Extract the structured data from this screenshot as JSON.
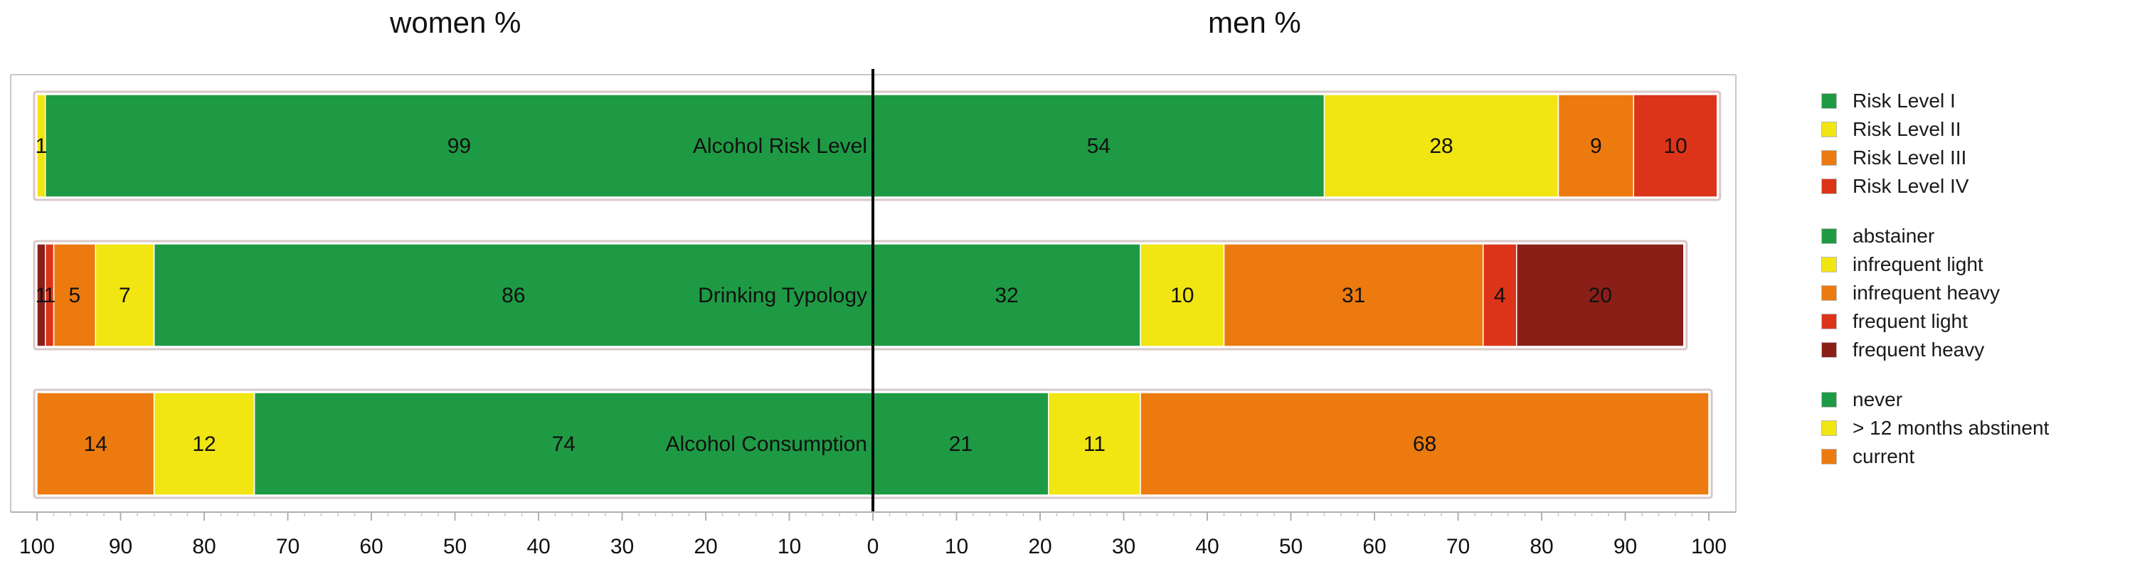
{
  "chart_data": {
    "type": "bar",
    "titles": {
      "left": "women %",
      "right": "men %"
    },
    "axis": {
      "ticks_left": [
        "100",
        "90",
        "80",
        "70",
        "60",
        "50",
        "40",
        "30",
        "20",
        "10"
      ],
      "ticks_right": [
        "0",
        "10",
        "20",
        "30",
        "40",
        "50",
        "60",
        "70",
        "80",
        "90",
        "100"
      ],
      "range": [
        0,
        100
      ]
    },
    "rows": [
      {
        "label": "Alcohol Risk Level",
        "women": [
          {
            "category": "Risk Level I",
            "value": 99,
            "color": "#1f9a44",
            "label": "99"
          },
          {
            "category": "Risk Level II",
            "value": 1,
            "color": "#f1e512",
            "label": "1"
          }
        ],
        "men": [
          {
            "category": "Risk Level I",
            "value": 54,
            "color": "#1f9a44",
            "label": "54"
          },
          {
            "category": "Risk Level II",
            "value": 28,
            "color": "#f1e512",
            "label": "28"
          },
          {
            "category": "Risk Level III",
            "value": 9,
            "color": "#ec7a0f",
            "label": "9"
          },
          {
            "category": "Risk Level IV",
            "value": 10,
            "color": "#dc3418",
            "label": "10"
          }
        ]
      },
      {
        "label": "Drinking Typology",
        "women": [
          {
            "category": "abstainer",
            "value": 86,
            "color": "#1f9a44",
            "label": "86"
          },
          {
            "category": "infrequent light",
            "value": 7,
            "color": "#f1e512",
            "label": "7"
          },
          {
            "category": "infrequent heavy",
            "value": 5,
            "color": "#ec7a0f",
            "label": "5"
          },
          {
            "category": "frequent light",
            "value": 1,
            "color": "#dc3418",
            "label": "1"
          },
          {
            "category": "frequent heavy",
            "value": 1,
            "color": "#8a1f17",
            "label": "1"
          }
        ],
        "men": [
          {
            "category": "abstainer",
            "value": 32,
            "color": "#1f9a44",
            "label": "32"
          },
          {
            "category": "infrequent light",
            "value": 10,
            "color": "#f1e512",
            "label": "10"
          },
          {
            "category": "infrequent heavy",
            "value": 31,
            "color": "#ec7a0f",
            "label": "31"
          },
          {
            "category": "frequent light",
            "value": 4,
            "color": "#dc3418",
            "label": "4"
          },
          {
            "category": "frequent heavy",
            "value": 20,
            "color": "#8a1f17",
            "label": "20"
          }
        ]
      },
      {
        "label": "Alcohol Consumption",
        "women": [
          {
            "category": "never",
            "value": 74,
            "color": "#1f9a44",
            "label": "74"
          },
          {
            "category": "> 12 months abstinent",
            "value": 12,
            "color": "#f1e512",
            "label": "12"
          },
          {
            "category": "current",
            "value": 14,
            "color": "#ec7a0f",
            "label": "14"
          }
        ],
        "men": [
          {
            "category": "never",
            "value": 21,
            "color": "#1f9a44",
            "label": "21"
          },
          {
            "category": "> 12 months abstinent",
            "value": 11,
            "color": "#f1e512",
            "label": "11"
          },
          {
            "category": "current",
            "value": 68,
            "color": "#ec7a0f",
            "label": "68"
          }
        ]
      }
    ],
    "legend": {
      "position": "right",
      "groups": [
        [
          {
            "label": "Risk Level I",
            "color": "#1f9a44"
          },
          {
            "label": "Risk Level II",
            "color": "#f1e512"
          },
          {
            "label": "Risk Level III",
            "color": "#ec7a0f"
          },
          {
            "label": "Risk Level IV",
            "color": "#dc3418"
          }
        ],
        [
          {
            "label": "abstainer",
            "color": "#1f9a44"
          },
          {
            "label": "infrequent light",
            "color": "#f1e512"
          },
          {
            "label": "infrequent heavy",
            "color": "#ec7a0f"
          },
          {
            "label": "frequent light",
            "color": "#dc3418"
          },
          {
            "label": "frequent heavy",
            "color": "#8a1f17"
          }
        ],
        [
          {
            "label": "never",
            "color": "#1f9a44"
          },
          {
            "label": "> 12 months abstinent",
            "color": "#f1e512"
          },
          {
            "label": "current",
            "color": "#ec7a0f"
          }
        ]
      ]
    }
  }
}
